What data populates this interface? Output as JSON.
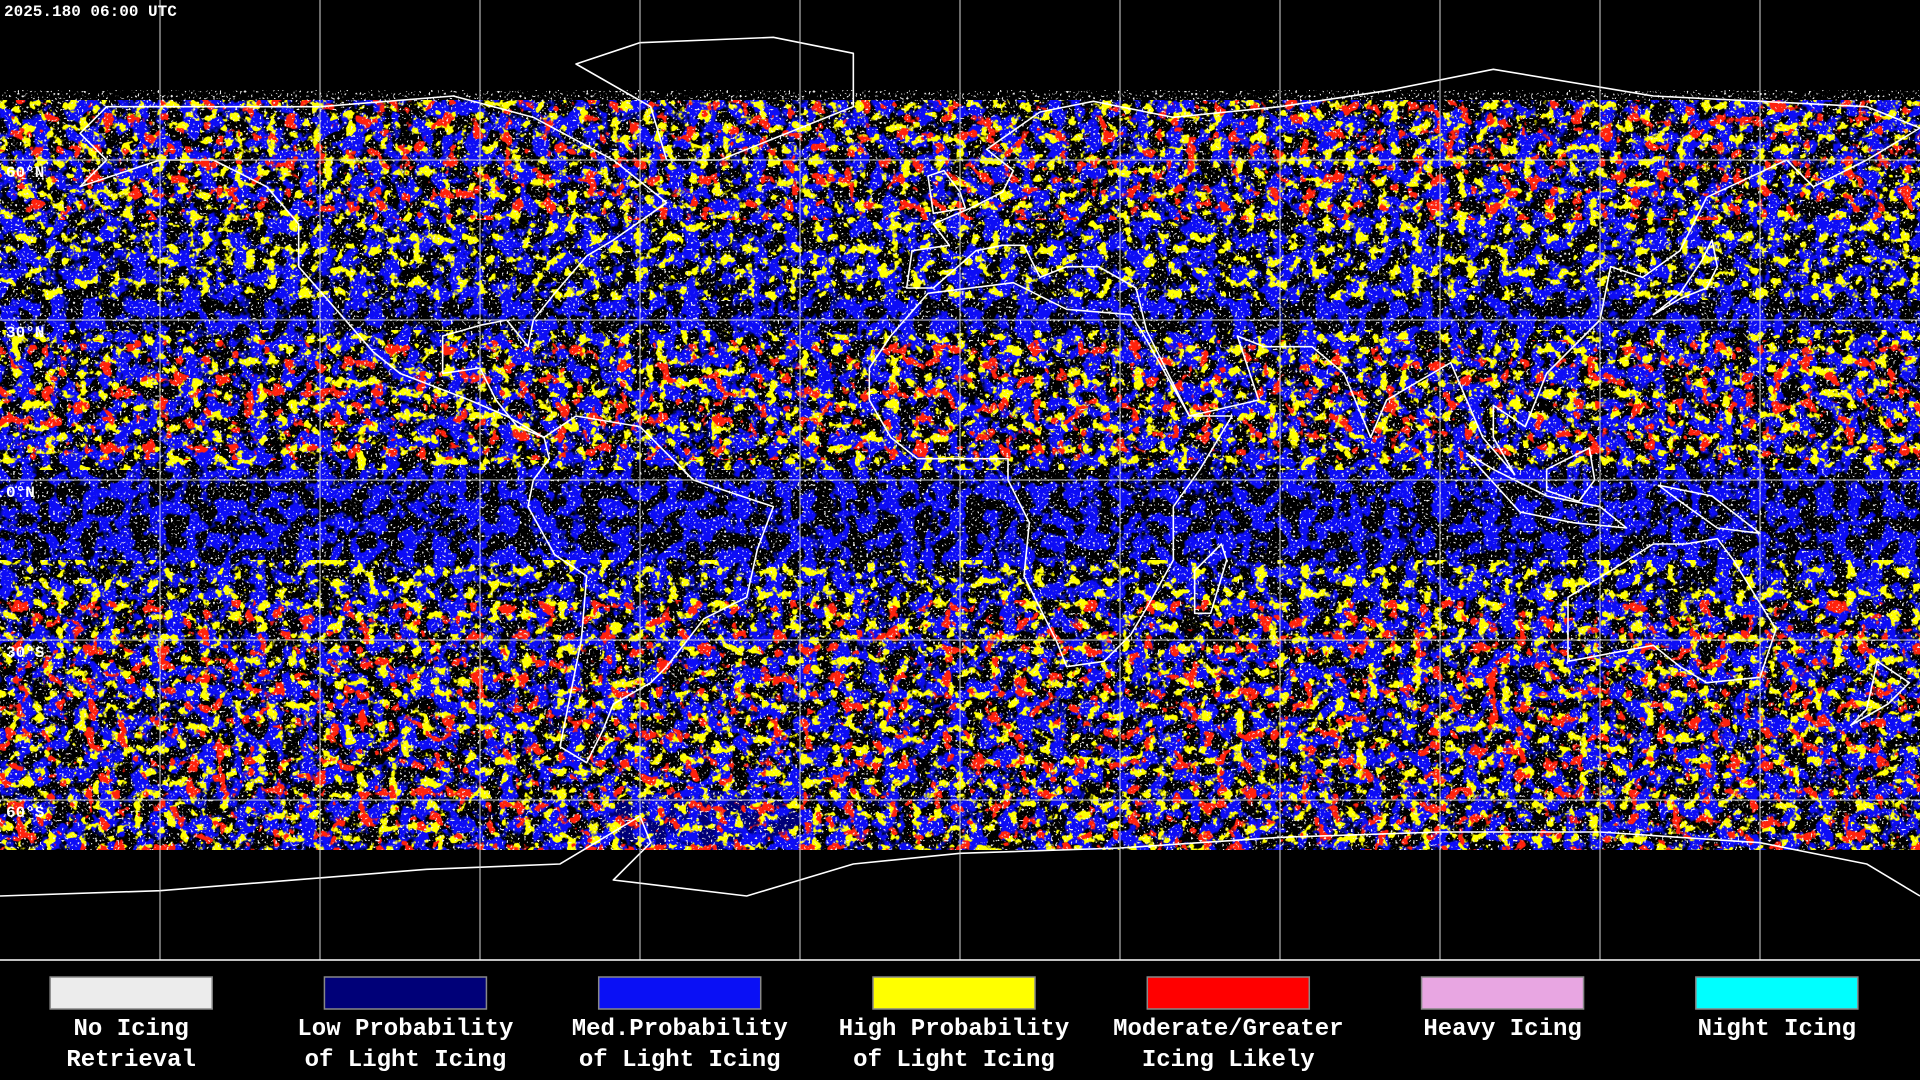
{
  "header": {
    "title": "2025.180 06:00 UTC"
  },
  "map": {
    "lat_labels": [
      "60°N",
      "30°N",
      "0°N",
      "30°S",
      "60°S"
    ]
  },
  "legend": {
    "items": [
      {
        "color": "#ececec",
        "lines": [
          "No Icing",
          "Retrieval"
        ]
      },
      {
        "color": "#000078",
        "lines": [
          "Low Probability",
          "of Light Icing"
        ]
      },
      {
        "color": "#0a10f5",
        "lines": [
          "Med.Probability",
          "of Light Icing"
        ]
      },
      {
        "color": "#ffff00",
        "lines": [
          "High Probability",
          "of Light Icing"
        ]
      },
      {
        "color": "#ff0000",
        "lines": [
          "Moderate/Greater",
          "Icing Likely"
        ]
      },
      {
        "color": "#e8a6e2",
        "lines": [
          "Heavy Icing"
        ]
      },
      {
        "color": "#00ffff",
        "lines": [
          "Night Icing"
        ]
      }
    ]
  }
}
